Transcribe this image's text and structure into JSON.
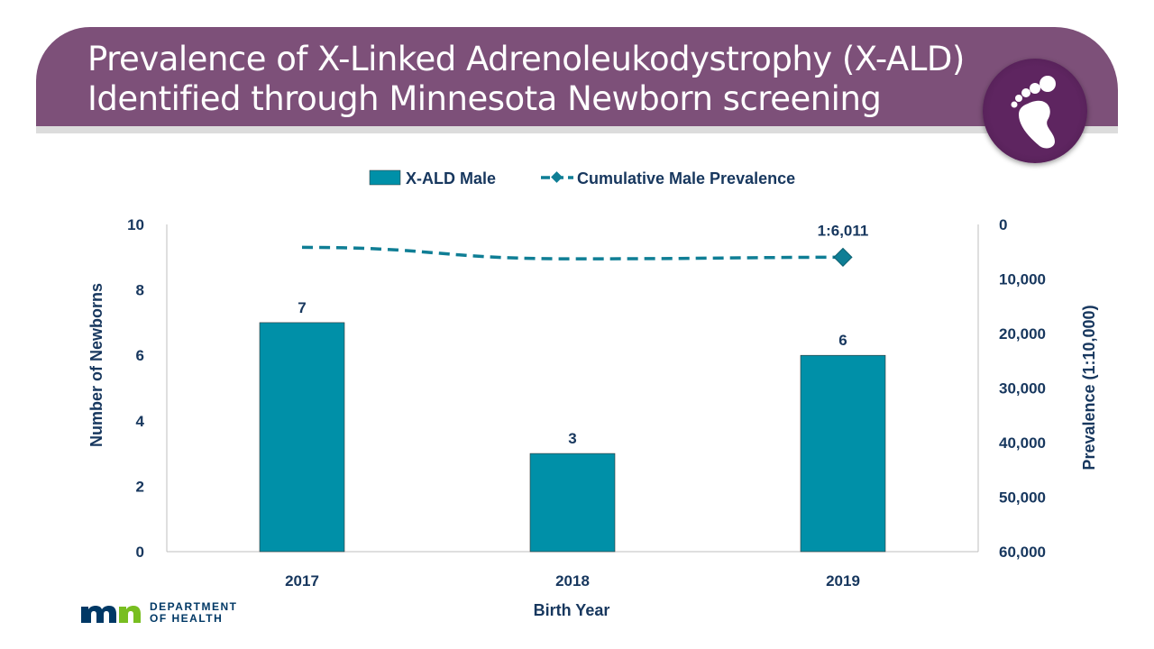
{
  "header": {
    "title_line1": "Prevalence of X-Linked Adrenoleukodystrophy (X-ALD)",
    "title_line2": "Identified through Minnesota Newborn screening",
    "icon": "baby-foot-icon"
  },
  "footer": {
    "logo_line1": "DEPARTMENT",
    "logo_line2": "OF HEALTH"
  },
  "chart_data": {
    "type": "bar+line",
    "categories": [
      "2017",
      "2018",
      "2019"
    ],
    "series": [
      {
        "name": "X-ALD Male",
        "type": "bar",
        "axis": "left",
        "values": [
          7,
          3,
          6
        ],
        "data_labels": [
          "7",
          "3",
          "6"
        ],
        "color": "#0090a8"
      },
      {
        "name": "Cumulative Male Prevalence",
        "type": "line",
        "axis": "right",
        "values": [
          4200,
          6300,
          6011
        ],
        "data_labels": [
          "",
          "",
          "1:6,011"
        ],
        "color": "#0f7e95",
        "style": "dashed",
        "marker": "diamond-last"
      }
    ],
    "xlabel": "Birth Year",
    "ylabel": "Number of  Newborns",
    "ylabel_right": "Prevalence (1:10,000)",
    "ylim": [
      0,
      10
    ],
    "yticks": [
      "0",
      "2",
      "4",
      "6",
      "8",
      "10"
    ],
    "ylim_right": [
      0,
      60000
    ],
    "reversed_right": true,
    "yticks_right": [
      "0",
      "10,000",
      "20,000",
      "30,000",
      "40,000",
      "50,000",
      "60,000"
    ],
    "legend": "top",
    "grid": false
  }
}
